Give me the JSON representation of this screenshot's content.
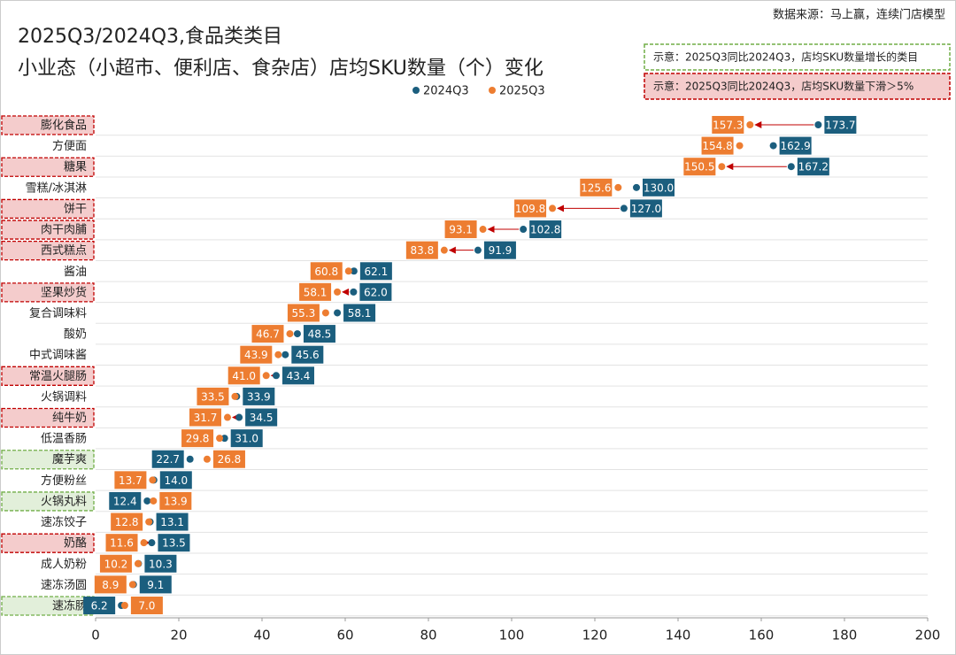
{
  "chart_data": {
    "type": "dumbbell",
    "title": "2025Q3/2024Q3,食品类类目",
    "subtitle": "小业态（小超市、便利店、食杂店）店均SKU数量（个）变化",
    "source": "数据来源：马上赢，连续门店模型",
    "categories": [
      "膨化食品",
      "方便面",
      "糖果",
      "雪糕/冰淇淋",
      "饼干",
      "肉干肉脯",
      "西式糕点",
      "酱油",
      "坚果炒货",
      "复合调味料",
      "酸奶",
      "中式调味酱",
      "常温火腿肠",
      "火锅调料",
      "纯牛奶",
      "低温香肠",
      "魔芋爽",
      "方便粉丝",
      "火锅丸料",
      "速冻饺子",
      "奶酪",
      "成人奶粉",
      "速冻汤圆",
      "速冻肠"
    ],
    "series": [
      {
        "name": "2024Q3",
        "color": "#1b5e7e",
        "values": [
          173.7,
          162.9,
          167.2,
          130.0,
          127.0,
          102.8,
          91.9,
          62.1,
          62.0,
          58.1,
          48.5,
          45.6,
          43.4,
          33.9,
          34.5,
          31.0,
          22.7,
          14.0,
          12.4,
          13.1,
          13.5,
          10.3,
          9.1,
          6.2
        ],
        "value_labels": [
          "173.7",
          "162.9",
          "167.2",
          "130.0",
          "127.0",
          "102.8",
          "91.9",
          "62.1",
          "62.0",
          "58.1",
          "48.5",
          "45.6",
          "43.4",
          "33.9",
          "34.5",
          "31.0",
          "22.7",
          "14.0",
          "12.4",
          "13.1",
          "13.5",
          "10.3",
          "9.1",
          "6.2"
        ]
      },
      {
        "name": "2025Q3",
        "color": "#ed7d31",
        "values": [
          157.3,
          154.8,
          150.5,
          125.6,
          109.8,
          93.1,
          83.8,
          60.8,
          58.1,
          55.3,
          46.7,
          43.9,
          41.0,
          33.5,
          31.7,
          29.8,
          26.8,
          13.7,
          13.9,
          12.8,
          11.6,
          10.2,
          8.9,
          7.0
        ],
        "value_labels": [
          "157.3",
          "154.8",
          "150.5",
          "125.6",
          "109.8",
          "93.1",
          "83.8",
          "60.8",
          "58.1",
          "55.3",
          "46.7",
          "43.9",
          "41.0",
          "33.5",
          "31.7",
          "29.8",
          "26.8",
          "13.7",
          "13.9",
          "12.8",
          "11.6",
          "10.2",
          "8.9",
          "7.0"
        ]
      }
    ],
    "category_highlight": [
      "#c00000",
      null,
      "#c00000",
      null,
      "#c00000",
      "#c00000",
      "#c00000",
      null,
      "#c00000",
      null,
      null,
      null,
      "#c00000",
      null,
      "#c00000",
      null,
      "#70ad47",
      null,
      "#70ad47",
      null,
      "#c00000",
      null,
      null,
      "#70ad47"
    ],
    "highlight_legend": [
      {
        "label": "示意：2025Q3同比2024Q3，店均SKU数量增长的类目",
        "color": "#70ad47"
      },
      {
        "label": "示意：2025Q3同比2024Q3，店均SKU数量下滑＞5%",
        "color": "#c00000"
      }
    ],
    "xlim": [
      0,
      200
    ],
    "xticks": [
      0,
      20,
      40,
      60,
      80,
      100,
      120,
      140,
      160,
      180,
      200
    ]
  }
}
